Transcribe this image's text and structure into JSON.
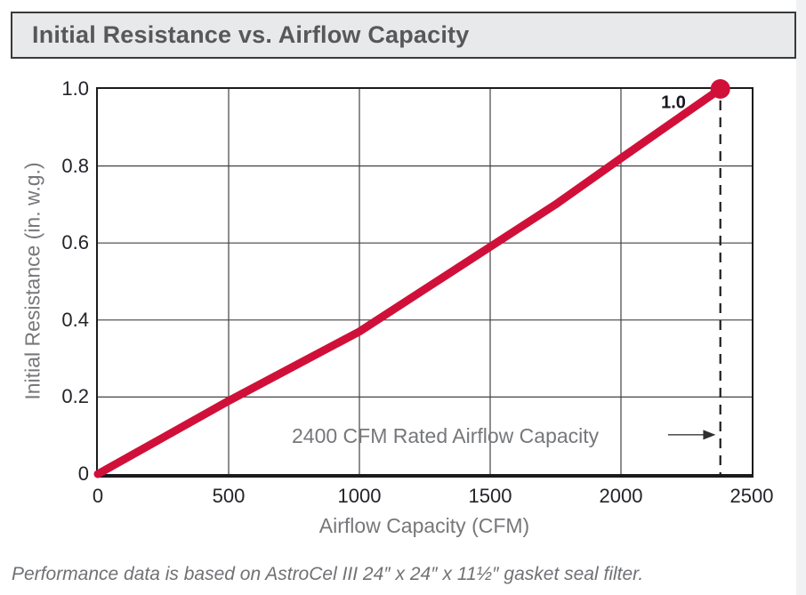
{
  "header": {
    "title": "Initial Resistance vs. Airflow Capacity",
    "bg_color": "#e8e9ea",
    "border_color": "#3a3a3c",
    "text_color": "#57585b"
  },
  "footer": {
    "note": "Performance data is based on AstroCel III 24″ x 24″ x 11½″ gasket seal filter."
  },
  "chart_data": {
    "type": "line",
    "title": "Initial Resistance vs. Airflow Capacity",
    "xlabel": "Airflow Capacity (CFM)",
    "ylabel": "Initial Resistance (in. w.g.)",
    "xlim": [
      0,
      2500
    ],
    "ylim": [
      0,
      1.0
    ],
    "grid": true,
    "grid_color": "#424244",
    "xticks": {
      "values": [
        0,
        500,
        1000,
        1500,
        2000,
        2500
      ],
      "labels": [
        "0",
        "500",
        "1000",
        "1500",
        "2000",
        "2500"
      ]
    },
    "yticks": {
      "values": [
        0,
        0.2,
        0.4,
        0.6,
        0.8,
        1.0
      ],
      "labels": [
        "0",
        "0.2",
        "0.4",
        "0.6",
        "0.8",
        "1.0"
      ]
    },
    "series": [
      {
        "name": "Initial Resistance",
        "color": "#d01039",
        "stroke_width": 9,
        "points": [
          [
            0,
            0
          ],
          [
            250,
            0.095
          ],
          [
            500,
            0.19
          ],
          [
            750,
            0.28
          ],
          [
            1000,
            0.37
          ],
          [
            1250,
            0.48
          ],
          [
            1500,
            0.59
          ],
          [
            1750,
            0.7
          ],
          [
            2000,
            0.82
          ],
          [
            2190,
            0.91
          ],
          [
            2380,
            1.0
          ]
        ]
      }
    ],
    "endpoint": {
      "x": 2380,
      "y": 1.0,
      "radius": 11,
      "label": "1.0",
      "label_color": "#17171f"
    },
    "rated_capacity_line": {
      "x": 2380,
      "color": "#1c1c1e",
      "dash": [
        11,
        8
      ],
      "width": 2.2
    },
    "annotation": {
      "text": "2400 CFM Rated Airflow Capacity",
      "y": 0.102,
      "arrow_from_x": 2180,
      "arrow_to_x": 2362,
      "text_color": "#76777a",
      "arrow_color": "#55565a",
      "arrowhead_color": "#2f2f31"
    }
  }
}
